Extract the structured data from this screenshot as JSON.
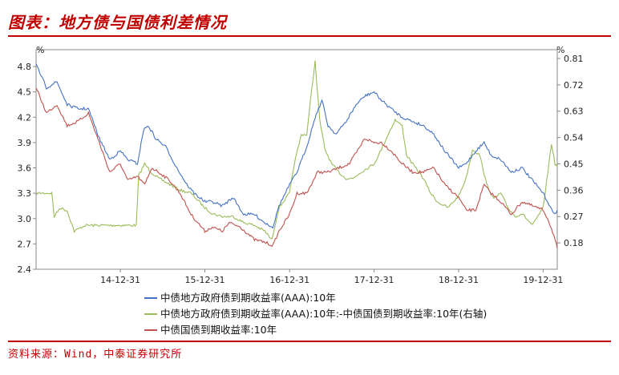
{
  "page_title": "图表：地方债与国债利差情况",
  "source": "资料来源：Wind，中泰证券研究所",
  "chart_data": {
    "type": "line",
    "title": "",
    "left_axis": {
      "unit": "%",
      "ylim": [
        2.4,
        5.0
      ],
      "ticks": [
        "2.4",
        "2.7",
        "3.0",
        "3.3",
        "3.6",
        "3.9",
        "4.2",
        "4.5",
        "4.8"
      ]
    },
    "right_axis": {
      "unit": "%",
      "ylim": [
        0.09,
        0.84
      ],
      "ticks": [
        "0.18",
        "0.27",
        "0.36",
        "0.45",
        "0.54",
        "0.63",
        "0.72",
        "0.81"
      ]
    },
    "x_ticks": [
      "14-12-31",
      "15-12-31",
      "16-12-31",
      "17-12-31",
      "18-12-31",
      "19-12-31"
    ],
    "series": [
      {
        "name": "中债地方政府债到期收益率(AAA):10年",
        "axis": "left",
        "color": "#4472c4",
        "points": [
          [
            "2014-01-01",
            4.82
          ],
          [
            "2014-02-15",
            4.55
          ],
          [
            "2014-04-01",
            4.62
          ],
          [
            "2014-05-15",
            4.35
          ],
          [
            "2014-07-01",
            4.3
          ],
          [
            "2014-08-15",
            4.3
          ],
          [
            "2014-10-01",
            3.95
          ],
          [
            "2014-11-15",
            3.7
          ],
          [
            "2014-12-31",
            3.8
          ],
          [
            "2015-02-01",
            3.7
          ],
          [
            "2015-03-15",
            3.65
          ],
          [
            "2015-04-10",
            4.05
          ],
          [
            "2015-05-01",
            4.1
          ],
          [
            "2015-06-01",
            3.95
          ],
          [
            "2015-07-15",
            3.85
          ],
          [
            "2015-09-01",
            3.6
          ],
          [
            "2015-10-15",
            3.4
          ],
          [
            "2015-11-15",
            3.3
          ],
          [
            "2015-12-31",
            3.2
          ],
          [
            "2016-02-01",
            3.2
          ],
          [
            "2016-03-15",
            3.15
          ],
          [
            "2016-05-01",
            3.25
          ],
          [
            "2016-06-15",
            3.05
          ],
          [
            "2016-08-01",
            3.05
          ],
          [
            "2016-09-15",
            2.95
          ],
          [
            "2016-10-20",
            2.9
          ],
          [
            "2016-11-15",
            3.15
          ],
          [
            "2016-12-31",
            3.4
          ],
          [
            "2017-02-01",
            3.55
          ],
          [
            "2017-03-15",
            3.85
          ],
          [
            "2017-04-20",
            4.2
          ],
          [
            "2017-05-20",
            4.4
          ],
          [
            "2017-06-15",
            4.1
          ],
          [
            "2017-07-20",
            4.0
          ],
          [
            "2017-09-01",
            4.15
          ],
          [
            "2017-10-15",
            4.35
          ],
          [
            "2017-11-20",
            4.45
          ],
          [
            "2017-12-31",
            4.5
          ],
          [
            "2018-02-01",
            4.4
          ],
          [
            "2018-03-15",
            4.3
          ],
          [
            "2018-05-01",
            4.2
          ],
          [
            "2018-06-15",
            4.15
          ],
          [
            "2018-08-01",
            4.1
          ],
          [
            "2018-09-15",
            4.0
          ],
          [
            "2018-11-01",
            3.8
          ],
          [
            "2018-12-31",
            3.6
          ],
          [
            "2019-02-01",
            3.65
          ],
          [
            "2019-03-15",
            3.8
          ],
          [
            "2019-04-20",
            3.9
          ],
          [
            "2019-05-20",
            3.75
          ],
          [
            "2019-07-01",
            3.7
          ],
          [
            "2019-08-15",
            3.55
          ],
          [
            "2019-10-01",
            3.6
          ],
          [
            "2019-11-15",
            3.45
          ],
          [
            "2019-12-31",
            3.3
          ],
          [
            "2020-01-20",
            3.2
          ],
          [
            "2020-02-15",
            3.05
          ],
          [
            "2020-03-01",
            3.1
          ]
        ]
      },
      {
        "name": "中债地方政府债到期收益率(AAA):10年:-中债国债到期收益率:10年(右轴)",
        "axis": "right",
        "color": "#9bbb59",
        "points": [
          [
            "2014-01-01",
            0.35
          ],
          [
            "2014-02-15",
            0.35
          ],
          [
            "2014-03-10",
            0.35
          ],
          [
            "2014-03-20",
            0.27
          ],
          [
            "2014-04-15",
            0.3
          ],
          [
            "2014-05-15",
            0.29
          ],
          [
            "2014-06-15",
            0.22
          ],
          [
            "2014-08-01",
            0.24
          ],
          [
            "2014-10-01",
            0.24
          ],
          [
            "2014-12-31",
            0.24
          ],
          [
            "2015-02-01",
            0.24
          ],
          [
            "2015-03-10",
            0.24
          ],
          [
            "2015-03-20",
            0.41
          ],
          [
            "2015-04-15",
            0.45
          ],
          [
            "2015-05-15",
            0.42
          ],
          [
            "2015-06-15",
            0.4
          ],
          [
            "2015-08-01",
            0.38
          ],
          [
            "2015-09-15",
            0.36
          ],
          [
            "2015-11-01",
            0.35
          ],
          [
            "2015-12-31",
            0.3
          ],
          [
            "2016-02-01",
            0.28
          ],
          [
            "2016-03-15",
            0.27
          ],
          [
            "2016-05-01",
            0.27
          ],
          [
            "2016-06-15",
            0.25
          ],
          [
            "2016-08-01",
            0.24
          ],
          [
            "2016-09-15",
            0.22
          ],
          [
            "2016-10-15",
            0.19
          ],
          [
            "2016-11-15",
            0.3
          ],
          [
            "2016-12-31",
            0.35
          ],
          [
            "2017-01-20",
            0.45
          ],
          [
            "2017-02-20",
            0.55
          ],
          [
            "2017-03-15",
            0.55
          ],
          [
            "2017-04-05",
            0.7
          ],
          [
            "2017-04-20",
            0.8
          ],
          [
            "2017-05-10",
            0.6
          ],
          [
            "2017-06-01",
            0.5
          ],
          [
            "2017-07-01",
            0.45
          ],
          [
            "2017-08-01",
            0.42
          ],
          [
            "2017-09-01",
            0.4
          ],
          [
            "2017-10-01",
            0.4
          ],
          [
            "2017-11-01",
            0.42
          ],
          [
            "2017-12-31",
            0.45
          ],
          [
            "2018-02-01",
            0.5
          ],
          [
            "2018-03-01",
            0.55
          ],
          [
            "2018-04-01",
            0.6
          ],
          [
            "2018-05-01",
            0.58
          ],
          [
            "2018-05-20",
            0.48
          ],
          [
            "2018-06-15",
            0.45
          ],
          [
            "2018-08-01",
            0.4
          ],
          [
            "2018-09-01",
            0.35
          ],
          [
            "2018-10-01",
            0.32
          ],
          [
            "2018-11-15",
            0.3
          ],
          [
            "2018-12-31",
            0.34
          ],
          [
            "2019-02-01",
            0.4
          ],
          [
            "2019-03-01",
            0.5
          ],
          [
            "2019-04-01",
            0.48
          ],
          [
            "2019-05-01",
            0.38
          ],
          [
            "2019-06-01",
            0.33
          ],
          [
            "2019-07-01",
            0.35
          ],
          [
            "2019-08-01",
            0.3
          ],
          [
            "2019-09-01",
            0.27
          ],
          [
            "2019-10-01",
            0.28
          ],
          [
            "2019-11-15",
            0.24
          ],
          [
            "2019-12-31",
            0.3
          ],
          [
            "2020-01-20",
            0.42
          ],
          [
            "2020-02-05",
            0.52
          ],
          [
            "2020-02-20",
            0.45
          ],
          [
            "2020-03-01",
            0.44
          ]
        ]
      },
      {
        "name": "中债国债到期收益率:10年",
        "axis": "left",
        "color": "#c0504d",
        "points": [
          [
            "2014-01-01",
            4.55
          ],
          [
            "2014-02-15",
            4.25
          ],
          [
            "2014-04-01",
            4.35
          ],
          [
            "2014-05-15",
            4.1
          ],
          [
            "2014-07-01",
            4.15
          ],
          [
            "2014-08-15",
            4.25
          ],
          [
            "2014-10-01",
            3.9
          ],
          [
            "2014-11-15",
            3.55
          ],
          [
            "2014-12-31",
            3.65
          ],
          [
            "2015-02-01",
            3.45
          ],
          [
            "2015-03-15",
            3.5
          ],
          [
            "2015-04-15",
            3.4
          ],
          [
            "2015-05-15",
            3.6
          ],
          [
            "2015-06-15",
            3.55
          ],
          [
            "2015-08-01",
            3.45
          ],
          [
            "2015-09-15",
            3.3
          ],
          [
            "2015-11-01",
            3.05
          ],
          [
            "2015-12-31",
            2.85
          ],
          [
            "2016-02-01",
            2.9
          ],
          [
            "2016-03-15",
            2.85
          ],
          [
            "2016-04-15",
            2.95
          ],
          [
            "2016-06-01",
            2.9
          ],
          [
            "2016-08-01",
            2.75
          ],
          [
            "2016-09-15",
            2.72
          ],
          [
            "2016-10-20",
            2.68
          ],
          [
            "2016-11-15",
            2.85
          ],
          [
            "2016-12-31",
            3.05
          ],
          [
            "2017-02-01",
            3.3
          ],
          [
            "2017-03-15",
            3.3
          ],
          [
            "2017-05-01",
            3.55
          ],
          [
            "2017-06-15",
            3.55
          ],
          [
            "2017-08-01",
            3.6
          ],
          [
            "2017-09-15",
            3.65
          ],
          [
            "2017-11-01",
            3.85
          ],
          [
            "2017-11-20",
            3.95
          ],
          [
            "2017-12-31",
            3.9
          ],
          [
            "2018-02-01",
            3.9
          ],
          [
            "2018-03-15",
            3.8
          ],
          [
            "2018-05-01",
            3.65
          ],
          [
            "2018-06-15",
            3.55
          ],
          [
            "2018-08-01",
            3.55
          ],
          [
            "2018-09-15",
            3.6
          ],
          [
            "2018-11-01",
            3.4
          ],
          [
            "2018-12-31",
            3.25
          ],
          [
            "2019-02-01",
            3.1
          ],
          [
            "2019-03-15",
            3.1
          ],
          [
            "2019-04-20",
            3.4
          ],
          [
            "2019-05-20",
            3.3
          ],
          [
            "2019-07-01",
            3.2
          ],
          [
            "2019-08-15",
            3.05
          ],
          [
            "2019-10-01",
            3.2
          ],
          [
            "2019-11-15",
            3.15
          ],
          [
            "2019-12-31",
            3.1
          ],
          [
            "2020-01-20",
            3.0
          ],
          [
            "2020-02-15",
            2.8
          ],
          [
            "2020-03-01",
            2.65
          ]
        ]
      }
    ]
  }
}
